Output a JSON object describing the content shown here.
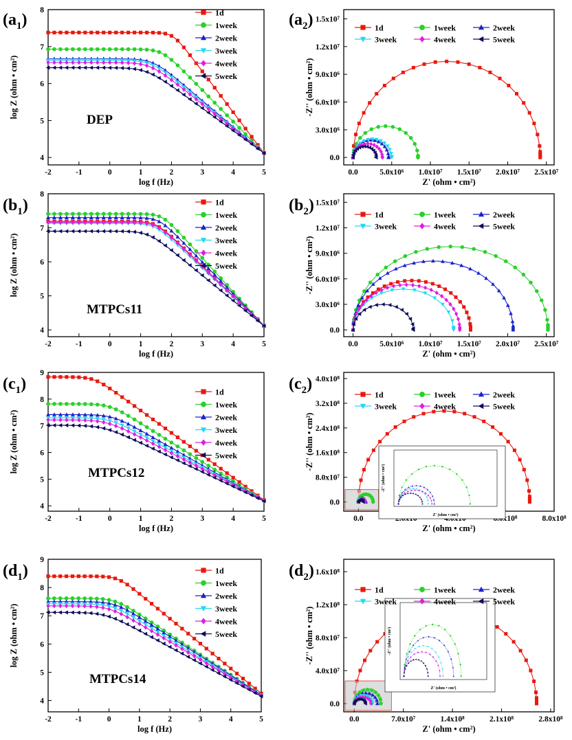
{
  "colors": {
    "1d": "#e8190f",
    "1week": "#2ad02a",
    "2week": "#1a22c8",
    "3week": "#22d8f0",
    "4week": "#e01ee0",
    "5week": "#0c0c5a",
    "inset_frame": "#333333",
    "inset_highlight": "#c8c8c8"
  },
  "chart_data": [
    {
      "id": "a1",
      "type": "line",
      "label_main": "(a",
      "label_sub": "1",
      "label_close": ")",
      "sample": "DEP",
      "xlabel": "log f (Hz)",
      "ylabel": "log Z (ohm • cm²)",
      "xlim": [
        -2,
        5
      ],
      "ylim": [
        3.8,
        8
      ],
      "xticks": [
        "-2",
        "-1",
        "0",
        "1",
        "2",
        "3",
        "4",
        "5"
      ],
      "yticks": [
        "4",
        "5",
        "6",
        "7",
        "8"
      ],
      "series": [
        {
          "name": "1d",
          "marker": "square",
          "low": 7.38,
          "fc": 2.05,
          "end": 4.12
        },
        {
          "name": "1week",
          "marker": "circle",
          "low": 6.93,
          "fc": 1.7,
          "end": 4.12
        },
        {
          "name": "2week",
          "marker": "triangle-up",
          "low": 6.67,
          "fc": 1.4,
          "end": 4.12
        },
        {
          "name": "3week",
          "marker": "triangle-down",
          "low": 6.63,
          "fc": 1.35,
          "end": 4.12
        },
        {
          "name": "4week",
          "marker": "diamond",
          "low": 6.57,
          "fc": 1.3,
          "end": 4.12
        },
        {
          "name": "5week",
          "marker": "triangle-left",
          "low": 6.43,
          "fc": 1.2,
          "end": 4.12
        }
      ]
    },
    {
      "id": "a2",
      "type": "scatter",
      "label_main": "(a",
      "label_sub": "2",
      "label_close": ")",
      "xlabel": "Z' (ohm • cm²)",
      "ylabel": "-Z'' (ohm • cm²)",
      "xlim": [
        -0.12,
        2.6
      ],
      "ylim": [
        -0.08,
        1.6
      ],
      "xticks": [
        {
          "v": 0,
          "t": "0.0"
        },
        {
          "v": 0.5,
          "t": "5.0x10⁶"
        },
        {
          "v": 1.0,
          "t": "1.0x10⁷"
        },
        {
          "v": 1.5,
          "t": "1.5x10⁷"
        },
        {
          "v": 2.0,
          "t": "2.0x10⁷"
        },
        {
          "v": 2.5,
          "t": "2.5x10⁷"
        }
      ],
      "yticks": [
        {
          "v": 0,
          "t": "0.0"
        },
        {
          "v": 0.3,
          "t": "3.0x10⁶"
        },
        {
          "v": 0.6,
          "t": "6.0x10⁶"
        },
        {
          "v": 0.9,
          "t": "9.0x10⁶"
        },
        {
          "v": 1.2,
          "t": "1.2x10⁷"
        },
        {
          "v": 1.5,
          "t": "1.5x10⁷"
        }
      ],
      "units_note": "Z' and -Z'' in units of 1x10^7 ohm·cm²",
      "series": [
        {
          "name": "1d",
          "marker": "square",
          "R": 2.42,
          "H": 1.04
        },
        {
          "name": "1week",
          "marker": "circle",
          "R": 0.84,
          "H": 0.34
        },
        {
          "name": "2week",
          "marker": "triangle-up",
          "R": 0.46,
          "H": 0.19
        },
        {
          "name": "3week",
          "marker": "triangle-down",
          "R": 0.5,
          "H": 0.2
        },
        {
          "name": "4week",
          "marker": "diamond",
          "R": 0.38,
          "H": 0.15
        },
        {
          "name": "5week",
          "marker": "triangle-left",
          "R": 0.3,
          "H": 0.12
        }
      ]
    },
    {
      "id": "b1",
      "type": "line",
      "label_main": "(b",
      "label_sub": "1",
      "label_close": ")",
      "sample": "MTPCs11",
      "xlabel": "log f (Hz)",
      "ylabel": "log Z (ohm • cm²)",
      "xlim": [
        -2,
        5
      ],
      "ylim": [
        3.8,
        8
      ],
      "xticks": [
        "-2",
        "-1",
        "0",
        "1",
        "2",
        "3",
        "4",
        "5"
      ],
      "yticks": [
        "4",
        "5",
        "6",
        "7",
        "8"
      ],
      "series": [
        {
          "name": "1d",
          "marker": "square",
          "low": 7.19,
          "fc": 1.5,
          "end": 4.12
        },
        {
          "name": "1week",
          "marker": "circle",
          "low": 7.41,
          "fc": 1.7,
          "end": 4.12
        },
        {
          "name": "2week",
          "marker": "triangle-up",
          "low": 7.3,
          "fc": 1.6,
          "end": 4.12
        },
        {
          "name": "3week",
          "marker": "triangle-down",
          "low": 7.13,
          "fc": 1.45,
          "end": 4.12
        },
        {
          "name": "4week",
          "marker": "diamond",
          "low": 7.16,
          "fc": 1.5,
          "end": 4.12
        },
        {
          "name": "5week",
          "marker": "triangle-left",
          "low": 6.9,
          "fc": 1.25,
          "end": 4.12
        }
      ]
    },
    {
      "id": "b2",
      "type": "scatter",
      "label_main": "(b",
      "label_sub": "2",
      "label_close": ")",
      "xlabel": "Z' (ohm • cm²)",
      "ylabel": "-Z'' (ohm • cm²)",
      "xlim": [
        -0.12,
        2.6
      ],
      "ylim": [
        -0.08,
        1.6
      ],
      "xticks": [
        {
          "v": 0,
          "t": "0.0"
        },
        {
          "v": 0.5,
          "t": "5.0x10⁶"
        },
        {
          "v": 1.0,
          "t": "1.0x10⁷"
        },
        {
          "v": 1.5,
          "t": "1.5x10⁷"
        },
        {
          "v": 2.0,
          "t": "2.0x10⁷"
        },
        {
          "v": 2.5,
          "t": "2.5x10⁷"
        }
      ],
      "yticks": [
        {
          "v": 0,
          "t": "0.0"
        },
        {
          "v": 0.3,
          "t": "3.0x10⁶"
        },
        {
          "v": 0.6,
          "t": "6.0x10⁶"
        },
        {
          "v": 0.9,
          "t": "9.0x10⁶"
        },
        {
          "v": 1.2,
          "t": "1.2x10⁷"
        },
        {
          "v": 1.5,
          "t": "1.5x10⁷"
        }
      ],
      "units_note": "Z' and -Z'' in units of 1x10^7 ohm·cm²",
      "series": [
        {
          "name": "1d",
          "marker": "square",
          "R": 1.52,
          "H": 0.58
        },
        {
          "name": "1week",
          "marker": "circle",
          "R": 2.52,
          "H": 0.98
        },
        {
          "name": "2week",
          "marker": "triangle-up",
          "R": 2.07,
          "H": 0.81
        },
        {
          "name": "3week",
          "marker": "triangle-down",
          "R": 1.3,
          "H": 0.48
        },
        {
          "name": "4week",
          "marker": "diamond",
          "R": 1.38,
          "H": 0.53
        },
        {
          "name": "5week",
          "marker": "triangle-left",
          "R": 0.78,
          "H": 0.3
        }
      ]
    },
    {
      "id": "c1",
      "type": "line",
      "label_main": "(c",
      "label_sub": "1",
      "label_close": ")",
      "sample": "MTPCs12",
      "xlabel": "log f (Hz)",
      "ylabel": "log Z (ohm • cm²)",
      "xlim": [
        -2,
        5
      ],
      "ylim": [
        3.8,
        9
      ],
      "xticks": [
        "-2",
        "-1",
        "0",
        "1",
        "2",
        "3",
        "4",
        "5"
      ],
      "yticks": [
        "4",
        "5",
        "6",
        "7",
        "8",
        "9"
      ],
      "series": [
        {
          "name": "1d",
          "marker": "square",
          "low": 8.83,
          "fc": -0.5,
          "end": 4.22
        },
        {
          "name": "1week",
          "marker": "circle",
          "low": 7.82,
          "fc": 0.0,
          "end": 4.2
        },
        {
          "name": "2week",
          "marker": "triangle-up",
          "low": 7.42,
          "fc": 0.1,
          "end": 4.2
        },
        {
          "name": "3week",
          "marker": "triangle-down",
          "low": 7.3,
          "fc": 0.0,
          "end": 4.2
        },
        {
          "name": "4week",
          "marker": "diamond",
          "low": 7.22,
          "fc": -0.1,
          "end": 4.2
        },
        {
          "name": "5week",
          "marker": "triangle-left",
          "low": 7.02,
          "fc": -0.2,
          "end": 4.18
        }
      ]
    },
    {
      "id": "c2",
      "type": "scatter",
      "label_main": "(c",
      "label_sub": "2",
      "label_close": ")",
      "xlabel": "Z' (ohm • cm²)",
      "ylabel": "-Z'' (ohm • cm²)",
      "xlim": [
        -0.6,
        8
      ],
      "ylim": [
        -0.3,
        4.2
      ],
      "xticks": [
        {
          "v": 0,
          "t": "0.0"
        },
        {
          "v": 2,
          "t": "2.0x10⁸"
        },
        {
          "v": 4,
          "t": "4.0x10⁸"
        },
        {
          "v": 6,
          "t": "6.0x10⁸"
        },
        {
          "v": 8,
          "t": "8.0x10⁸"
        }
      ],
      "yticks": [
        {
          "v": 0,
          "t": "0.0"
        },
        {
          "v": 0.8,
          "t": "8.0x10⁷"
        },
        {
          "v": 1.6,
          "t": "1.6x10⁸"
        },
        {
          "v": 2.4,
          "t": "2.4x10⁸"
        },
        {
          "v": 3.2,
          "t": "3.2x10⁸"
        },
        {
          "v": 4.0,
          "t": "4.0x10⁸"
        }
      ],
      "units_note": "Z' and -Z'' in units of 1x10^8 ohm·cm²",
      "inset": {
        "xlabel": "Z' (ohm • cm²)",
        "ylabel": "-Z'' (ohm • cm²)",
        "xmax": 0.75,
        "ymax": 0.32
      },
      "series": [
        {
          "name": "1d",
          "marker": "square",
          "R": 7.0,
          "H": 2.95
        },
        {
          "name": "1week",
          "marker": "circle",
          "R": 0.6,
          "H": 0.25
        },
        {
          "name": "2week",
          "marker": "triangle-up",
          "R": 0.3,
          "H": 0.12
        },
        {
          "name": "3week",
          "marker": "triangle-down",
          "R": 0.25,
          "H": 0.1
        },
        {
          "name": "4week",
          "marker": "diamond",
          "R": 0.28,
          "H": 0.09
        },
        {
          "name": "5week",
          "marker": "triangle-left",
          "R": 0.2,
          "H": 0.07
        }
      ]
    },
    {
      "id": "d1",
      "type": "line",
      "label_main": "(d",
      "label_sub": "1",
      "label_close": ")",
      "sample": "MTPCs14",
      "xlabel": "log f (Hz)",
      "ylabel": "log Z (ohm • cm²)",
      "xlim": [
        -2,
        5
      ],
      "ylim": [
        3.6,
        9
      ],
      "xticks": [
        "-2",
        "-1",
        "0",
        "1",
        "2",
        "3",
        "4",
        "5"
      ],
      "yticks": [
        "4",
        "5",
        "6",
        "7",
        "8",
        "9"
      ],
      "series": [
        {
          "name": "1d",
          "marker": "square",
          "low": 8.4,
          "fc": 0.3,
          "end": 4.25
        },
        {
          "name": "1week",
          "marker": "circle",
          "low": 7.62,
          "fc": 0.2,
          "end": 4.2
        },
        {
          "name": "2week",
          "marker": "triangle-up",
          "low": 7.5,
          "fc": 0.2,
          "end": 4.2
        },
        {
          "name": "3week",
          "marker": "triangle-down",
          "low": 7.42,
          "fc": 0.1,
          "end": 4.18
        },
        {
          "name": "4week",
          "marker": "diamond",
          "low": 7.35,
          "fc": 0.0,
          "end": 4.18
        },
        {
          "name": "5week",
          "marker": "triangle-left",
          "low": 7.12,
          "fc": -0.1,
          "end": 4.15
        }
      ]
    },
    {
      "id": "d2",
      "type": "scatter",
      "label_main": "(d",
      "label_sub": "2",
      "label_close": ")",
      "xlabel": "Z' (ohm • cm²)",
      "ylabel": "-Z'' (ohm • cm²)",
      "xlim": [
        -0.15,
        2.85
      ],
      "ylim": [
        -0.1,
        1.75
      ],
      "xticks": [
        {
          "v": 0,
          "t": "0.0"
        },
        {
          "v": 0.7,
          "t": "7.0x10⁷"
        },
        {
          "v": 1.4,
          "t": "1.4x10⁸"
        },
        {
          "v": 2.1,
          "t": "2.1x10⁸"
        },
        {
          "v": 2.8,
          "t": "2.8x10⁸"
        }
      ],
      "yticks": [
        {
          "v": 0,
          "t": "0.0"
        },
        {
          "v": 0.4,
          "t": "4.0x10⁷"
        },
        {
          "v": 0.8,
          "t": "8.0x10⁷"
        },
        {
          "v": 1.2,
          "t": "1.2x10⁸"
        },
        {
          "v": 1.6,
          "t": "1.6x10⁸"
        }
      ],
      "units_note": "Z' and -Z'' in units of 1x10^8 ohm·cm²",
      "inset": {
        "xlabel": "Z' (ohm • cm²)",
        "ylabel": "-Z'' (ohm • cm²)",
        "xmax": 0.5,
        "ymax": 0.22
      },
      "series": [
        {
          "name": "1d",
          "marker": "square",
          "R": 2.6,
          "H": 1.13
        },
        {
          "name": "1week",
          "marker": "circle",
          "R": 0.38,
          "H": 0.17
        },
        {
          "name": "2week",
          "marker": "triangle-up",
          "R": 0.33,
          "H": 0.13
        },
        {
          "name": "3week",
          "marker": "triangle-down",
          "R": 0.26,
          "H": 0.1
        },
        {
          "name": "4week",
          "marker": "diamond",
          "R": 0.24,
          "H": 0.08
        },
        {
          "name": "5week",
          "marker": "triangle-left",
          "R": 0.16,
          "H": 0.055
        }
      ]
    }
  ]
}
